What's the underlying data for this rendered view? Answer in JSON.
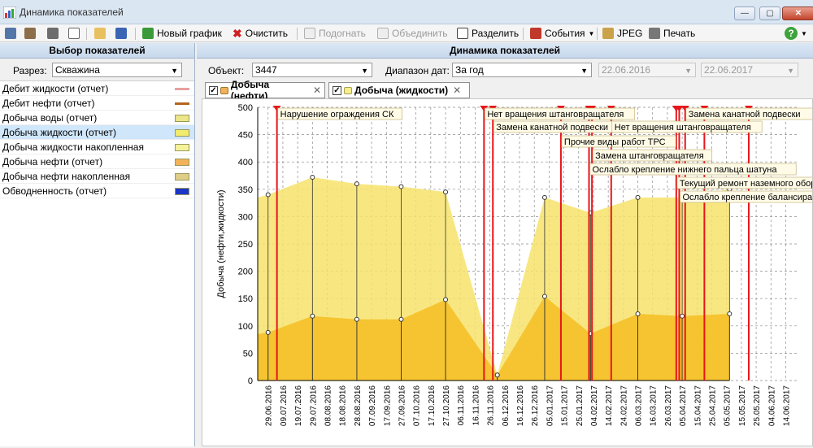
{
  "window": {
    "title": "Динамика показателей"
  },
  "toolbar": {
    "new_chart": "Новый график",
    "clear": "Очистить",
    "fit": "Подогнать",
    "merge": "Объединить",
    "split": "Разделить",
    "events": "События",
    "jpeg": "JPEG",
    "print": "Печать"
  },
  "left_panel": {
    "header": "Выбор показателей",
    "razrez_label": "Разрез:",
    "razrez_value": "Скважина",
    "indicators": [
      {
        "label": "Дебит жидкости  (отчет)",
        "color": "#e8a0a0",
        "kind": "line"
      },
      {
        "label": "Дебит нефти (отчет)",
        "color": "#b5651d",
        "kind": "line"
      },
      {
        "label": "Добыча воды (отчет)",
        "color": "#ece58a",
        "kind": "area"
      },
      {
        "label": "Добыча жидкости (отчет)",
        "color": "#f2ec6e",
        "kind": "area"
      },
      {
        "label": "Добыча жидкости накопленная",
        "color": "#f6f29a",
        "kind": "area"
      },
      {
        "label": "Добыча нефти (отчет)",
        "color": "#f2b25a",
        "kind": "area"
      },
      {
        "label": "Добыча нефти накопленная",
        "color": "#e0cd8a",
        "kind": "area"
      },
      {
        "label": "Обводненность (отчет)",
        "color": "#1b35c7",
        "kind": "area"
      }
    ],
    "selected_index": 3
  },
  "right_panel": {
    "header": "Динамика показателей",
    "object_label": "Объект:",
    "object_value": "3447",
    "range_label": "Диапазон дат:",
    "range_value": "За год",
    "date_from": "22.06.2016",
    "date_to": "22.06.2017",
    "tabs": [
      "Добыча (нефти)",
      "Добыча (жидкости)"
    ]
  },
  "colors": {
    "liquid_area": "#f7e36b",
    "oil_area": "#f4c22b",
    "event_line": "#e8151b",
    "grid": "#8c8c8c"
  },
  "chart_data": {
    "type": "area",
    "ylabel": "Добыча (нефти,жидкости)",
    "ylim": [
      0,
      500
    ],
    "yticks": [
      0,
      50,
      100,
      150,
      200,
      250,
      300,
      350,
      400,
      450,
      500
    ],
    "xticks": [
      "29.06.2016",
      "09.07.2016",
      "19.07.2016",
      "29.07.2016",
      "08.08.2016",
      "18.08.2016",
      "28.08.2016",
      "07.09.2016",
      "17.09.2016",
      "27.09.2016",
      "07.10.2016",
      "17.10.2016",
      "27.10.2016",
      "06.11.2016",
      "16.11.2016",
      "26.11.2016",
      "06.12.2016",
      "16.12.2016",
      "26.12.2016",
      "05.01.2017",
      "15.01.2017",
      "25.01.2017",
      "04.02.2017",
      "14.02.2017",
      "24.02.2017",
      "06.03.2017",
      "16.03.2017",
      "26.03.2017",
      "05.04.2017",
      "15.04.2017",
      "25.04.2017",
      "05.05.2017",
      "15.05.2017",
      "25.05.2017",
      "04.06.2017",
      "14.06.2017"
    ],
    "series": [
      {
        "name": "Добыча (жидкости)",
        "x": [
          "22.06.2016",
          "29.06.2016",
          "29.07.2016",
          "28.08.2016",
          "27.09.2016",
          "27.10.2016",
          "01.12.2016",
          "02.01.2017",
          "02.02.2017",
          "06.03.2017",
          "05.04.2017",
          "07.05.2017"
        ],
        "values": [
          335,
          340,
          372,
          360,
          355,
          345,
          10,
          335,
          307,
          335,
          335,
          350
        ]
      },
      {
        "name": "Добыча (нефти)",
        "x": [
          "22.06.2016",
          "29.06.2016",
          "29.07.2016",
          "28.08.2016",
          "27.09.2016",
          "27.10.2016",
          "01.12.2016",
          "02.01.2017",
          "02.02.2017",
          "06.03.2017",
          "05.04.2017",
          "07.05.2017"
        ],
        "values": [
          85,
          88,
          118,
          112,
          112,
          148,
          10,
          154,
          86,
          122,
          118,
          122
        ]
      }
    ],
    "events": [
      {
        "date": "05.07.2016",
        "label": "Нарушение ограждения СК"
      },
      {
        "date": "22.11.2016",
        "label": "Нет вращения штанговращателя"
      },
      {
        "date": "28.11.2016",
        "label": "Замена канатной подвески"
      },
      {
        "date": "13.01.2017",
        "label": "Прочие виды работ ТРС"
      },
      {
        "date": "01.02.2017",
        "label": "Ослабло крепление нижнего пальца шатуна"
      },
      {
        "date": "03.02.2017",
        "label": "Замена штанговращателя"
      },
      {
        "date": "16.02.2017",
        "label": "Нет вращения штанговращателя"
      },
      {
        "date": "01.04.2017",
        "label": "Текущий ремонт наземного оборудования"
      },
      {
        "date": "03.04.2017",
        "label": "Ослабло крепление балансира к опоре"
      },
      {
        "date": "07.04.2017",
        "label": "Замена канатной подвески"
      },
      {
        "date": "20.04.2017",
        "label": ""
      },
      {
        "date": "20.05.2017",
        "label": ""
      }
    ]
  }
}
